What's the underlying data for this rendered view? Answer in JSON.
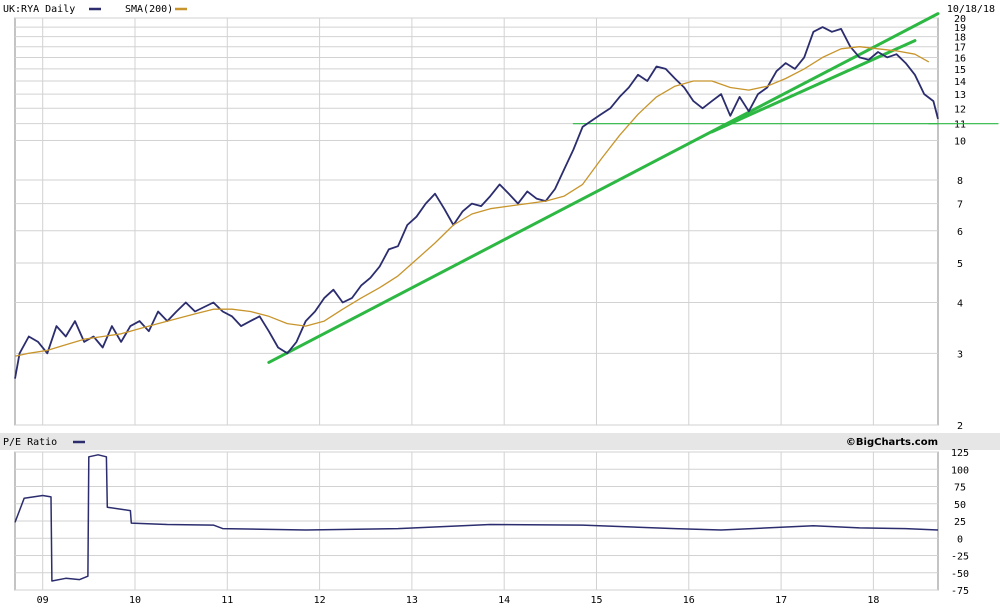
{
  "chart_data": [
    {
      "type": "line",
      "symbol": "UK:RYA Daily",
      "date": "10/18/18",
      "legend": [
        {
          "label": "UK:RYA Daily",
          "color": "#2b2d6e"
        },
        {
          "label": "SMA(200)",
          "color": "#c8952c"
        }
      ],
      "y_scale": "log",
      "ylim": [
        2,
        20
      ],
      "yticks": [
        2,
        3,
        4,
        5,
        6,
        7,
        8,
        10,
        11,
        12,
        13,
        14,
        15,
        16,
        17,
        18,
        19,
        20
      ],
      "xticks": [
        "09",
        "10",
        "11",
        "12",
        "13",
        "14",
        "15",
        "16",
        "17",
        "18"
      ],
      "xlim": [
        2008.85,
        2018.85
      ],
      "series": [
        {
          "name": "UK:RYA Daily",
          "color": "#2b2d6e",
          "x": [
            2008.85,
            2008.9,
            2009.0,
            2009.1,
            2009.2,
            2009.3,
            2009.4,
            2009.5,
            2009.6,
            2009.7,
            2009.8,
            2009.9,
            2010.0,
            2010.1,
            2010.2,
            2010.3,
            2010.4,
            2010.5,
            2010.6,
            2010.7,
            2010.8,
            2010.9,
            2011.0,
            2011.1,
            2011.2,
            2011.3,
            2011.4,
            2011.5,
            2011.6,
            2011.7,
            2011.8,
            2011.9,
            2012.0,
            2012.1,
            2012.2,
            2012.3,
            2012.4,
            2012.5,
            2012.6,
            2012.7,
            2012.8,
            2012.9,
            2013.0,
            2013.1,
            2013.2,
            2013.3,
            2013.4,
            2013.5,
            2013.6,
            2013.7,
            2013.8,
            2013.9,
            2014.0,
            2014.1,
            2014.2,
            2014.3,
            2014.4,
            2014.5,
            2014.6,
            2014.7,
            2014.8,
            2014.9,
            2015.0,
            2015.1,
            2015.2,
            2015.3,
            2015.4,
            2015.5,
            2015.6,
            2015.7,
            2015.8,
            2015.9,
            2016.0,
            2016.1,
            2016.2,
            2016.3,
            2016.4,
            2016.5,
            2016.6,
            2016.7,
            2016.8,
            2016.9,
            2017.0,
            2017.1,
            2017.2,
            2017.3,
            2017.4,
            2017.5,
            2017.6,
            2017.7,
            2017.8,
            2017.9,
            2018.0,
            2018.1,
            2018.2,
            2018.3,
            2018.4,
            2018.5,
            2018.6,
            2018.7,
            2018.8,
            2018.85
          ],
          "values": [
            2.6,
            3.0,
            3.3,
            3.2,
            3.0,
            3.5,
            3.3,
            3.6,
            3.2,
            3.3,
            3.1,
            3.5,
            3.2,
            3.5,
            3.6,
            3.4,
            3.8,
            3.6,
            3.8,
            4.0,
            3.8,
            3.9,
            4.0,
            3.8,
            3.7,
            3.5,
            3.6,
            3.7,
            3.4,
            3.1,
            3.0,
            3.2,
            3.6,
            3.8,
            4.1,
            4.3,
            4.0,
            4.1,
            4.4,
            4.6,
            4.9,
            5.4,
            5.5,
            6.2,
            6.5,
            7.0,
            7.4,
            6.8,
            6.2,
            6.7,
            7.0,
            6.9,
            7.3,
            7.8,
            7.4,
            7.0,
            7.5,
            7.2,
            7.1,
            7.6,
            8.5,
            9.5,
            10.8,
            11.2,
            11.6,
            12.0,
            12.8,
            13.5,
            14.5,
            14.0,
            15.2,
            15.0,
            14.2,
            13.5,
            12.5,
            12.0,
            12.5,
            13.0,
            11.5,
            12.8,
            11.8,
            13.0,
            13.5,
            14.8,
            15.5,
            15.0,
            16.0,
            18.5,
            19.0,
            18.5,
            18.8,
            17.0,
            16.0,
            15.8,
            16.5,
            16.0,
            16.3,
            15.5,
            14.5,
            13.0,
            12.5,
            11.3
          ]
        },
        {
          "name": "SMA(200)",
          "color": "#c8952c",
          "x": [
            2008.85,
            2009.0,
            2009.2,
            2009.4,
            2009.6,
            2009.8,
            2010.0,
            2010.2,
            2010.4,
            2010.6,
            2010.8,
            2011.0,
            2011.2,
            2011.4,
            2011.6,
            2011.8,
            2012.0,
            2012.2,
            2012.4,
            2012.6,
            2012.8,
            2013.0,
            2013.2,
            2013.4,
            2013.6,
            2013.8,
            2014.0,
            2014.2,
            2014.4,
            2014.6,
            2014.8,
            2015.0,
            2015.2,
            2015.4,
            2015.6,
            2015.8,
            2016.0,
            2016.2,
            2016.4,
            2016.6,
            2016.8,
            2017.0,
            2017.2,
            2017.4,
            2017.6,
            2017.8,
            2018.0,
            2018.2,
            2018.4,
            2018.6,
            2018.75
          ],
          "values": [
            2.95,
            3.0,
            3.05,
            3.15,
            3.25,
            3.3,
            3.35,
            3.45,
            3.55,
            3.65,
            3.75,
            3.85,
            3.85,
            3.8,
            3.7,
            3.55,
            3.5,
            3.6,
            3.85,
            4.1,
            4.35,
            4.65,
            5.1,
            5.6,
            6.2,
            6.6,
            6.8,
            6.9,
            7.0,
            7.1,
            7.3,
            7.8,
            9.0,
            10.3,
            11.6,
            12.8,
            13.6,
            14.0,
            14.0,
            13.5,
            13.3,
            13.6,
            14.2,
            15.0,
            16.0,
            16.8,
            17.0,
            16.8,
            16.6,
            16.3,
            15.6
          ]
        }
      ],
      "annotations": [
        {
          "type": "trendline",
          "color": "#2db843",
          "from": [
            2011.6,
            2.85
          ],
          "to": [
            2018.85,
            20.5
          ]
        },
        {
          "type": "trendline",
          "color": "#2db843",
          "from": [
            2016.4,
            10.5
          ],
          "to": [
            2018.6,
            17.6
          ]
        },
        {
          "type": "hline",
          "color": "#2db843",
          "from": [
            2014.9,
            11
          ],
          "to": [
            2018.85,
            11
          ]
        },
        {
          "type": "hline",
          "color": "#2db843",
          "from": [
            2018.75,
            11
          ],
          "to": [
            2019.5,
            11
          ]
        }
      ]
    },
    {
      "type": "line",
      "title": "P/E Ratio",
      "legend": [
        {
          "label": "P/E Ratio",
          "color": "#2b2d6e"
        }
      ],
      "credit": "©BigCharts.com",
      "ylim": [
        -75,
        125
      ],
      "yticks": [
        125,
        100,
        75,
        50,
        25,
        0,
        -25,
        -50,
        -75
      ],
      "xticks": [
        "09",
        "10",
        "11",
        "12",
        "13",
        "14",
        "15",
        "16",
        "17",
        "18"
      ],
      "xlim": [
        2008.85,
        2018.85
      ],
      "series": [
        {
          "name": "P/E Ratio",
          "color": "#2b2d6e",
          "x": [
            2008.85,
            2008.95,
            2009.05,
            2009.15,
            2009.24,
            2009.25,
            2009.4,
            2009.55,
            2009.64,
            2009.65,
            2009.75,
            2009.84,
            2009.85,
            2010.0,
            2010.1,
            2010.11,
            2010.5,
            2011.0,
            2011.1,
            2012.0,
            2013.0,
            2014.0,
            2015.0,
            2016.0,
            2016.5,
            2017.0,
            2017.5,
            2018.0,
            2018.5,
            2018.85
          ],
          "values": [
            23,
            58,
            60,
            62,
            60,
            -62,
            -58,
            -60,
            -55,
            118,
            121,
            118,
            45,
            42,
            40,
            22,
            20,
            19,
            14,
            12,
            14,
            20,
            19,
            14,
            12,
            15,
            18,
            15,
            14,
            12
          ]
        }
      ]
    }
  ]
}
